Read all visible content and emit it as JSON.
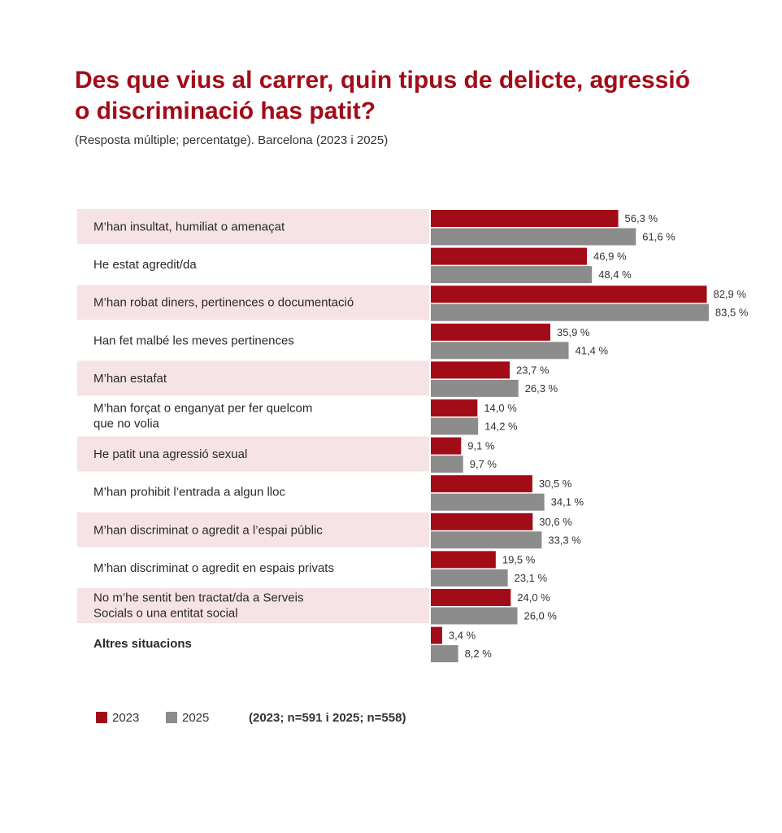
{
  "title": "Des que vius al carrer, quin tipus de delicte, agressió o discriminació has patit?",
  "subtitle": "(Resposta múltiple; percentatge). Barcelona (2023 i 2025)",
  "colors": {
    "series_2023": "#a20c18",
    "series_2025": "#8c8c8c",
    "row_highlight": "#f6e3e5",
    "title": "#a20c18"
  },
  "legend": {
    "items": [
      "2023",
      "2025"
    ],
    "note": "(2023; n=591 i 2025; n=558)"
  },
  "chart_data": {
    "type": "bar",
    "orientation": "horizontal",
    "title": "Des que vius al carrer, quin tipus de delicte, agressió o discriminació has patit?",
    "subtitle": "(Resposta múltiple; percentatge). Barcelona (2023 i 2025)",
    "categories": [
      [
        "M’han insultat, humiliat o amenaçat"
      ],
      [
        "He estat agredit/da"
      ],
      [
        "M’han robat diners, pertinences o documentació"
      ],
      [
        "Han fet malbé les meves pertinences"
      ],
      [
        "M’han estafat"
      ],
      [
        "M’han forçat o enganyat per fer quelcom",
        "que no volia"
      ],
      [
        "He patit una agressió sexual"
      ],
      [
        "M’han prohibit l’entrada a algun lloc"
      ],
      [
        "M’han discriminat o agredit a l’espai públic"
      ],
      [
        "M’han discriminat o agredit en espais privats"
      ],
      [
        "No m’he sentit ben tractat/da a Serveis",
        "Socials o una entitat social"
      ],
      [
        "Altres situacions"
      ]
    ],
    "series": [
      {
        "name": "2023",
        "values": [
          56.3,
          46.9,
          82.9,
          35.9,
          23.7,
          14.0,
          9.1,
          30.5,
          30.6,
          19.5,
          24.0,
          3.4
        ],
        "labels": [
          "56,3 %",
          "46,9 %",
          "82,9 %",
          "35,9 %",
          "23,7 %",
          "14,0 %",
          "9,1 %",
          "30,5 %",
          "30,6 %",
          "19,5 %",
          "24,0 %",
          "3,4 %"
        ]
      },
      {
        "name": "2025",
        "values": [
          61.6,
          48.4,
          83.5,
          41.4,
          26.3,
          14.2,
          9.7,
          34.1,
          33.3,
          23.1,
          26.0,
          8.2
        ],
        "labels": [
          "61,6 %",
          "48,4 %",
          "83,5 %",
          "41,4 %",
          "26,3 %",
          "14,2 %",
          "9,7 %",
          "34,1 %",
          "33,3 %",
          "23,1 %",
          "26,0 %",
          "8,2 %"
        ]
      }
    ],
    "highlighted_rows": [
      0,
      2,
      4,
      6,
      8,
      10
    ],
    "bold_rows": [
      11
    ],
    "xlim": [
      0,
      100
    ],
    "grid": false,
    "legend_position": "bottom-left"
  }
}
